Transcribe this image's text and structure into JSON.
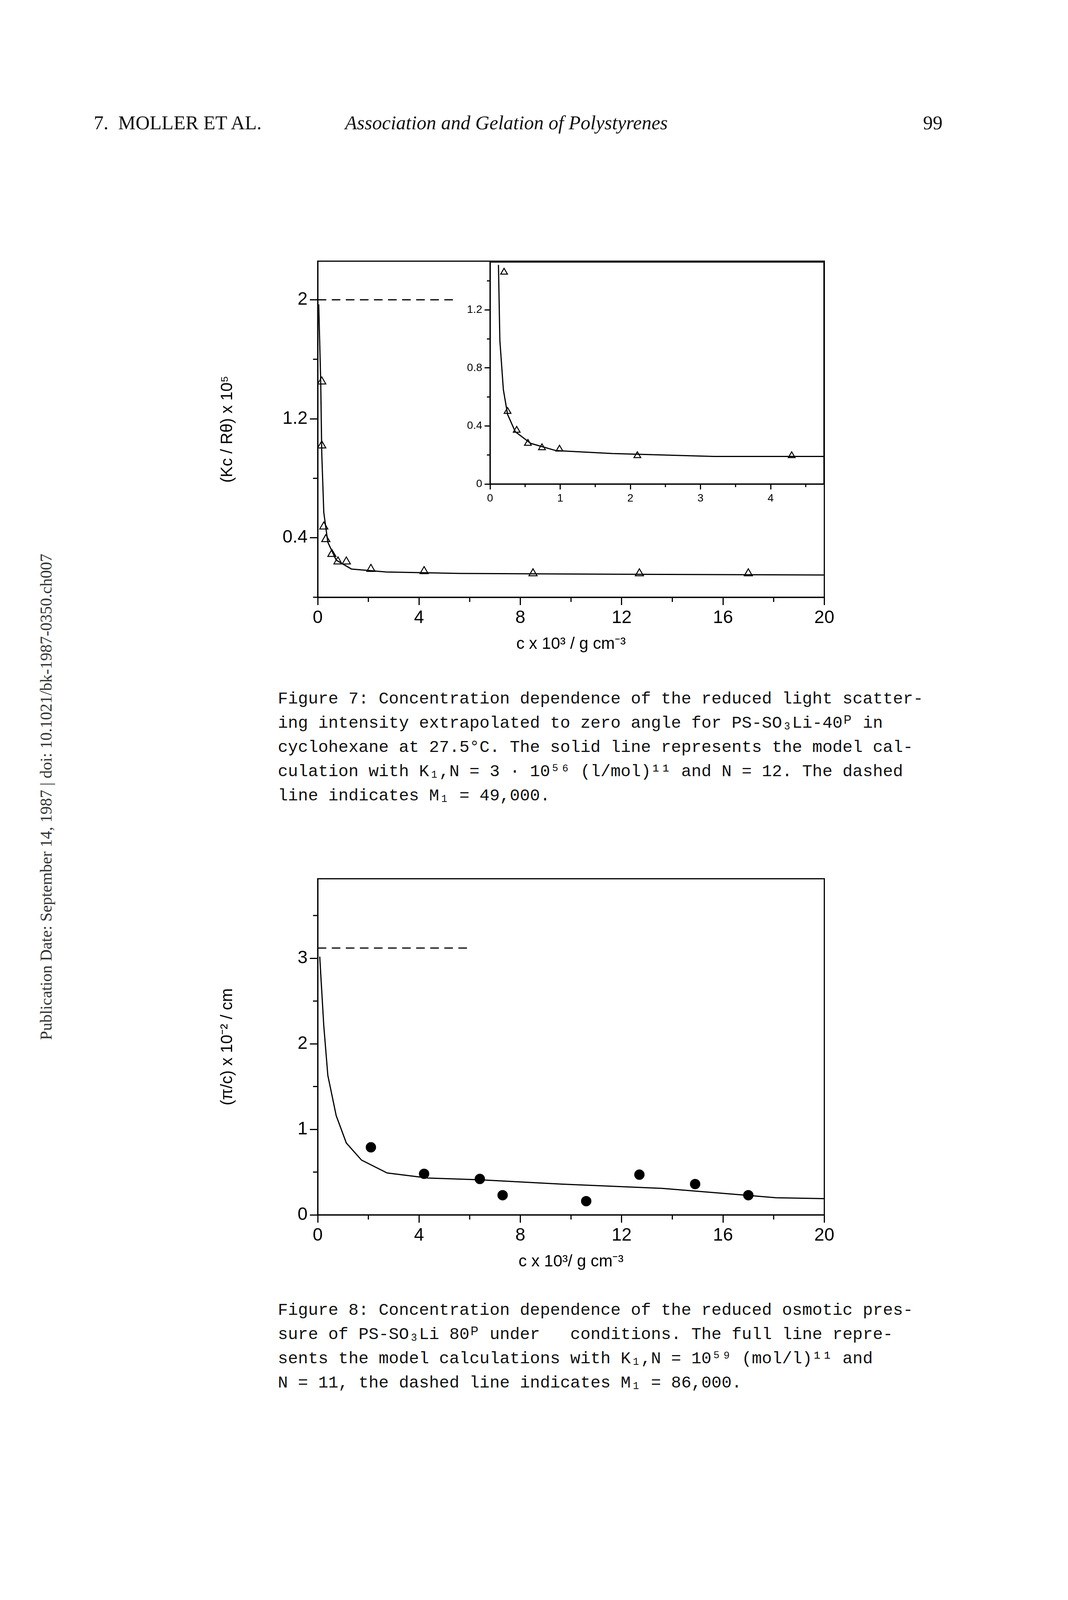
{
  "header": {
    "left": "7.  MOLLER ET AL.",
    "title": "Association and Gelation of Polystyrenes",
    "page": "99"
  },
  "side_text": "Publication Date: September 14, 1987 | doi: 10.1021/bk-1987-0350.ch007",
  "chart_data": [
    {
      "type": "scatter",
      "xlabel": "c x 10³ / g cm⁻³",
      "ylabel": "(Kc / Rθ) x 10⁵",
      "xlim": [
        0,
        20
      ],
      "xticks": [
        0,
        4,
        8,
        12,
        16,
        20
      ],
      "ylim": [
        0,
        2.26
      ],
      "yticks": [
        0.4,
        1.2,
        2.0
      ],
      "grid": false,
      "series": [
        {
          "type": "line",
          "line_style": "dashed",
          "color": "#000000",
          "x": [
            0,
            5.4
          ],
          "values": [
            2.0,
            2.0
          ]
        },
        {
          "type": "line",
          "line_style": "solid",
          "color": "#000000",
          "x": [
            0.04,
            0.12,
            0.16,
            0.24,
            0.4,
            0.73,
            1.33,
            2.7,
            5.6,
            11.6,
            20
          ],
          "values": [
            1.97,
            1.44,
            0.97,
            0.57,
            0.37,
            0.25,
            0.19,
            0.17,
            0.16,
            0.155,
            0.15
          ]
        },
        {
          "type": "scatter",
          "marker": "open_triangle",
          "color": "#000000",
          "x": [
            0.16,
            0.16,
            0.24,
            0.32,
            0.56,
            0.8,
            1.13,
            2.1,
            4.2,
            8.5,
            12.7,
            17.0
          ],
          "values": [
            1.45,
            1.02,
            0.475,
            0.39,
            0.29,
            0.24,
            0.24,
            0.19,
            0.175,
            0.16,
            0.16,
            0.16
          ]
        }
      ],
      "caption": [
        "Figure 7: Concentration dependence of the reduced light scatter-",
        "ing intensity extrapolated to zero angle for PS-SO₃Li-40ᴾ in",
        "cyclohexane at 27.5°C. The solid line represents the model cal-",
        "culation with K₁,N = 3 · 10⁵⁶ (l/mol)¹¹ and N = 12. The dashed",
        "line indicates M₁ = 49,000."
      ]
    },
    {
      "type": "scatter",
      "xlim": [
        0,
        4.76
      ],
      "xticks": [
        0,
        1,
        2,
        3,
        4
      ],
      "ylim": [
        0,
        1.53
      ],
      "yticks": [
        0,
        0.4,
        0.8,
        1.2
      ],
      "grid": false,
      "series": [
        {
          "type": "line",
          "line_style": "solid",
          "color": "#000000",
          "x": [
            0.12,
            0.14,
            0.19,
            0.25,
            0.36,
            0.58,
            0.94,
            1.74,
            3.19,
            4.76
          ],
          "values": [
            1.51,
            0.99,
            0.65,
            0.48,
            0.36,
            0.28,
            0.23,
            0.21,
            0.19,
            0.19
          ]
        },
        {
          "type": "scatter",
          "marker": "open_triangle",
          "color": "#000000",
          "x": [
            0.2,
            0.25,
            0.38,
            0.54,
            0.74,
            0.99,
            2.1,
            4.3
          ],
          "values": [
            1.46,
            0.5,
            0.37,
            0.28,
            0.25,
            0.24,
            0.195,
            0.195
          ]
        }
      ]
    },
    {
      "type": "scatter",
      "xlabel": "c x 10³/ g cm⁻³",
      "ylabel": "(π/c) x 10⁻² / cm",
      "xlim": [
        0,
        20
      ],
      "xticks": [
        0,
        4,
        8,
        12,
        16,
        20
      ],
      "ylim": [
        0,
        3.93
      ],
      "yticks": [
        0,
        1,
        2,
        3
      ],
      "grid": false,
      "series": [
        {
          "type": "line",
          "line_style": "dashed",
          "color": "#000000",
          "x": [
            0,
            6.1
          ],
          "values": [
            3.12,
            3.12
          ]
        },
        {
          "type": "line",
          "line_style": "solid",
          "color": "#000000",
          "x": [
            0.08,
            0.24,
            0.4,
            0.73,
            1.13,
            1.73,
            2.74,
            4.35,
            6.4,
            9.6,
            13.6,
            16.9,
            18.1,
            20
          ],
          "values": [
            3.02,
            2.21,
            1.63,
            1.16,
            0.84,
            0.64,
            0.49,
            0.43,
            0.41,
            0.36,
            0.31,
            0.23,
            0.2,
            0.19
          ]
        },
        {
          "type": "scatter",
          "marker": "filled_circle",
          "color": "#000000",
          "x": [
            2.1,
            4.2,
            6.4,
            7.3,
            10.6,
            12.7,
            14.9,
            17.0
          ],
          "values": [
            0.79,
            0.48,
            0.42,
            0.23,
            0.16,
            0.47,
            0.36,
            0.23
          ]
        }
      ],
      "caption": [
        "Figure 8: Concentration dependence of the reduced osmotic pres-",
        "sure of PS-SO₃Li 80ᴾ under   conditions. The full line repre-",
        "sents the model calculations with K₁,N = 10⁵⁹ (mol/l)¹¹ and",
        "N = 11, the dashed line indicates M₁ = 86,000."
      ]
    }
  ]
}
